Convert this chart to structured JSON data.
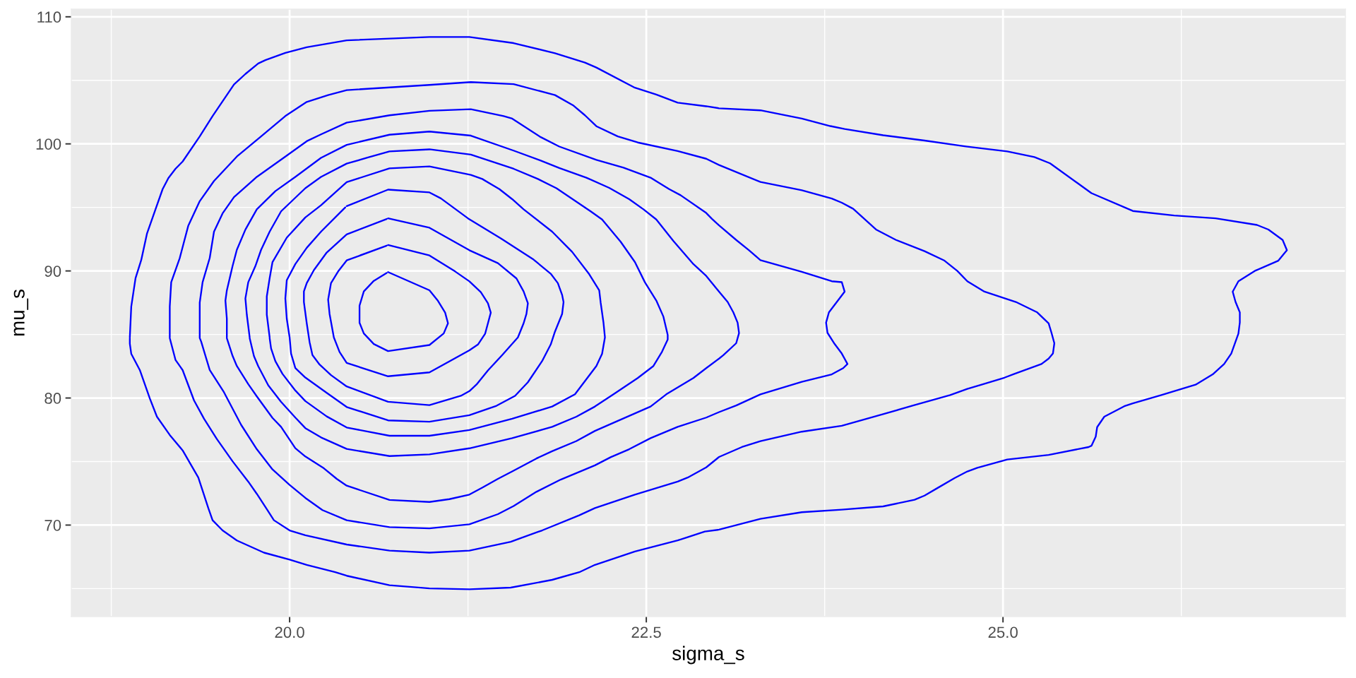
{
  "chart_data": {
    "type": "line",
    "xlabel": "sigma_s",
    "ylabel": "mu_s",
    "xlim": [
      18.47,
      27.4
    ],
    "ylim": [
      62.8,
      110.6
    ],
    "xticks": [
      {
        "value": 20,
        "label": "20.0"
      },
      22.5,
      {
        "value": 25,
        "label": "25.0"
      }
    ],
    "yticks": [
      70,
      80,
      90,
      100,
      110
    ],
    "grid": true,
    "line_style": "solid",
    "series": [
      {
        "color": "#0000ff",
        "x": [
          20.69,
          20.98,
          21.04,
          21.09,
          21.11,
          21.08,
          20.98,
          20.69,
          20.59,
          20.52,
          20.49,
          20.49,
          20.52,
          20.59,
          20.68
        ],
        "values": [
          89.91,
          88.48,
          87.64,
          86.72,
          85.88,
          85.08,
          84.17,
          83.69,
          84.25,
          85.08,
          85.92,
          87.27,
          88.39,
          89.22,
          89.84
        ]
      },
      {
        "color": "#0000ff",
        "x": [
          20.69,
          20.98,
          21.16,
          21.26,
          21.34,
          21.39,
          21.41,
          21.39,
          21.37,
          21.32,
          21.26,
          20.98,
          20.69,
          20.4,
          20.35,
          20.31,
          20.28,
          20.27,
          20.29,
          20.34,
          20.4,
          20.68
        ],
        "values": [
          92.04,
          91.22,
          89.96,
          89.18,
          88.33,
          87.46,
          86.72,
          85.88,
          85.05,
          84.21,
          83.75,
          82.02,
          81.71,
          82.76,
          83.62,
          84.77,
          86.62,
          87.74,
          89.04,
          89.96,
          90.83,
          91.99
        ]
      },
      {
        "color": "#0000ff",
        "x": [
          20.69,
          20.98,
          21.26,
          21.46,
          21.59,
          21.64,
          21.67,
          21.66,
          21.64,
          21.6,
          21.49,
          21.39,
          21.31,
          21.26,
          21.2,
          20.98,
          20.69,
          20.4,
          20.29,
          20.21,
          20.16,
          20.14,
          20.12,
          20.1,
          20.1,
          20.12,
          20.17,
          20.26,
          20.4,
          20.68
        ],
        "values": [
          94.14,
          93.4,
          91.63,
          90.61,
          89.41,
          88.39,
          87.46,
          86.62,
          85.88,
          84.77,
          83.38,
          82.17,
          81.06,
          80.54,
          80.17,
          79.44,
          79.7,
          80.91,
          81.8,
          82.63,
          83.38,
          84.4,
          85.88,
          87.55,
          88.39,
          89.04,
          90.06,
          91.45,
          92.88,
          94.09
        ]
      },
      {
        "color": "#0000ff",
        "x": [
          20.4,
          20.69,
          20.98,
          21.06,
          21.25,
          21.48,
          21.71,
          21.83,
          21.88,
          21.91,
          21.92,
          21.91,
          21.86,
          21.83,
          21.77,
          21.67,
          21.58,
          21.45,
          21.26,
          20.98,
          20.69,
          20.4,
          20.26,
          20.11,
          20.04,
          20.01,
          20.0,
          19.98,
          19.97,
          19.98,
          20.04,
          20.12,
          20.22,
          20.39
        ],
        "values": [
          95.1,
          96.4,
          96.18,
          95.71,
          94.14,
          92.56,
          90.89,
          89.78,
          89.04,
          88.11,
          87.55,
          86.62,
          85.23,
          84.21,
          82.91,
          81.24,
          80.17,
          79.39,
          78.65,
          78.13,
          78.24,
          79.29,
          80.41,
          81.61,
          82.36,
          83.5,
          84.77,
          86.24,
          87.83,
          89.27,
          90.54,
          91.82,
          93.09,
          95.0
        ]
      },
      {
        "color": "#0000ff",
        "x": [
          19.86,
          19.84,
          19.84,
          19.86,
          19.88,
          19.98,
          20.11,
          20.22,
          20.4,
          20.7,
          20.98,
          21.27,
          21.35,
          21.47,
          21.56,
          21.64,
          21.84,
          21.98,
          22.1,
          22.17,
          22.18,
          22.2,
          22.21,
          22.19,
          22.15,
          22.0,
          21.84,
          21.56,
          21.26,
          20.98,
          20.7,
          20.4,
          20.26,
          20.11,
          20.04,
          19.95,
          19.9,
          19.87,
          19.86
        ],
        "values": [
          84.77,
          86.56,
          87.99,
          89.43,
          90.7,
          92.62,
          94.21,
          95.17,
          96.99,
          98.07,
          98.23,
          97.56,
          97.24,
          96.44,
          95.65,
          94.85,
          93.09,
          91.5,
          89.74,
          88.47,
          87.51,
          85.92,
          84.77,
          83.48,
          82.52,
          80.29,
          79.33,
          78.37,
          77.48,
          77.03,
          77.03,
          77.68,
          78.55,
          79.76,
          80.59,
          81.9,
          82.9,
          83.9,
          84.71
        ]
      },
      {
        "color": "#0000ff",
        "x": [
          19.72,
          19.7,
          19.69,
          19.71,
          19.76,
          19.8,
          19.86,
          19.94,
          20.11,
          20.22,
          20.4,
          20.55,
          20.7,
          20.98,
          21.27,
          21.57,
          21.74,
          21.87,
          22.11,
          22.19,
          22.32,
          22.42,
          22.49,
          22.57,
          22.62,
          22.65,
          22.65,
          22.61,
          22.55,
          22.44,
          22.27,
          22.14,
          22.01,
          21.84,
          21.56,
          21.26,
          20.98,
          20.7,
          20.4,
          20.22,
          20.11,
          20.04,
          19.94,
          19.85,
          19.78,
          19.75,
          19.72
        ],
        "values": [
          84.77,
          86.56,
          87.83,
          89.11,
          90.38,
          91.66,
          93.09,
          94.69,
          96.51,
          97.4,
          98.45,
          98.93,
          99.41,
          99.57,
          99.16,
          98.04,
          97.24,
          96.51,
          94.69,
          94.05,
          92.3,
          90.7,
          89.11,
          87.67,
          86.4,
          84.96,
          84.6,
          83.64,
          82.52,
          81.57,
          80.29,
          79.33,
          78.53,
          77.73,
          76.84,
          76.04,
          75.56,
          75.43,
          75.99,
          76.9,
          77.63,
          78.46,
          79.7,
          81.0,
          82.5,
          83.3,
          84.71
        ]
      },
      {
        "color": "#0000ff",
        "x": [
          19.56,
          19.56,
          19.55,
          19.56,
          19.6,
          19.63,
          19.69,
          19.77,
          19.9,
          20.04,
          20.22,
          20.4,
          20.7,
          20.98,
          21.27,
          21.57,
          21.76,
          21.89,
          22.08,
          22.24,
          22.38,
          22.48,
          22.57,
          22.69,
          22.83,
          22.92,
          23.01,
          23.07,
          23.11,
          23.14,
          23.15,
          23.13,
          23.04,
          23.01,
          22.92,
          22.83,
          22.64,
          22.53,
          22.27,
          22.14,
          22.01,
          21.84,
          21.73,
          21.56,
          21.46,
          21.35,
          21.26,
          21.12,
          20.98,
          20.7,
          20.4,
          20.33,
          20.24,
          20.11,
          20.04,
          19.94,
          19.88,
          19.77,
          19.71,
          19.63,
          19.6,
          19.56
        ],
        "values": [
          84.77,
          86.24,
          87.67,
          88.47,
          90.38,
          91.66,
          93.25,
          94.85,
          96.28,
          97.4,
          98.9,
          99.92,
          100.72,
          100.97,
          100.65,
          99.47,
          98.68,
          98.1,
          97.34,
          96.54,
          95.65,
          94.85,
          94.05,
          92.36,
          90.54,
          89.61,
          88.37,
          87.56,
          86.74,
          85.93,
          85.11,
          84.31,
          83.37,
          83.1,
          82.35,
          81.57,
          80.29,
          79.33,
          78.05,
          77.41,
          76.61,
          75.81,
          75.24,
          74.22,
          73.64,
          72.94,
          72.4,
          72.04,
          71.82,
          71.98,
          73.1,
          73.64,
          74.47,
          75.4,
          76.05,
          77.73,
          78.43,
          80.13,
          81.09,
          82.52,
          83.32,
          84.71
        ]
      },
      {
        "color": "#0000ff",
        "x": [
          19.37,
          19.37,
          19.39,
          19.44,
          19.47,
          19.53,
          19.61,
          19.77,
          19.97,
          20.12,
          20.22,
          20.4,
          20.7,
          20.98,
          21.27,
          21.5,
          21.56,
          21.76,
          21.89,
          22.15,
          22.34,
          22.53,
          22.66,
          22.74,
          22.92,
          22.96,
          23.01,
          23.13,
          23.22,
          23.3,
          23.59,
          23.8,
          23.87,
          23.89,
          23.78,
          23.76,
          23.77,
          23.82,
          23.87,
          23.91,
          23.88,
          23.8,
          23.59,
          23.3,
          23.13,
          23.01,
          22.92,
          22.72,
          22.53,
          22.38,
          22.25,
          22.14,
          21.9,
          21.73,
          21.57,
          21.46,
          21.26,
          20.98,
          20.7,
          20.4,
          20.23,
          20.11,
          20.0,
          19.88,
          19.77,
          19.66,
          19.54,
          19.44,
          19.38,
          19.37
        ],
        "values": [
          84.77,
          87.51,
          89.11,
          91.02,
          93.09,
          94.53,
          95.81,
          97.4,
          99.0,
          100.21,
          100.75,
          101.67,
          102.25,
          102.6,
          102.73,
          102.19,
          101.99,
          100.53,
          99.79,
          98.74,
          98.13,
          97.34,
          96.44,
          95.96,
          94.56,
          94.1,
          93.58,
          92.44,
          91.63,
          90.85,
          89.93,
          89.19,
          89.12,
          88.37,
          86.74,
          85.93,
          85.13,
          84.25,
          83.5,
          82.68,
          82.35,
          81.86,
          81.27,
          80.29,
          79.41,
          78.89,
          78.46,
          77.73,
          76.84,
          75.97,
          75.34,
          74.7,
          73.58,
          72.62,
          71.5,
          70.86,
          70.06,
          69.74,
          69.84,
          70.38,
          71.18,
          72.14,
          73.16,
          74.38,
          75.97,
          77.89,
          80.45,
          82.2,
          84.44,
          84.72
        ]
      },
      {
        "color": "#0000ff",
        "x": [
          19.16,
          19.16,
          19.17,
          19.23,
          19.26,
          19.29,
          19.37,
          19.47,
          19.63,
          19.8,
          19.97,
          20.12,
          20.27,
          20.4,
          20.98,
          21.27,
          21.57,
          21.86,
          21.99,
          22.07,
          22.15,
          22.3,
          22.44,
          22.72,
          22.92,
          23.01,
          23.3,
          23.59,
          23.8,
          23.87,
          23.95,
          24.11,
          24.25,
          24.45,
          24.59,
          24.68,
          24.75,
          24.87,
          25.09,
          25.24,
          25.32,
          25.34,
          25.36,
          25.35,
          25.32,
          25.27,
          25.08,
          25.01,
          24.85,
          24.75,
          24.63,
          24.37,
          24.16,
          23.87,
          23.59,
          23.3,
          23.17,
          23.01,
          22.92,
          22.79,
          22.72,
          22.42,
          22.14,
          22.03,
          21.77,
          21.55,
          21.26,
          20.98,
          20.7,
          20.4,
          20.11,
          20.0,
          19.89,
          19.84,
          19.77,
          19.71,
          19.6,
          19.49,
          19.4,
          19.33,
          19.25,
          19.2,
          19.16
        ],
        "values": [
          84.77,
          87.19,
          89.11,
          91.02,
          92.3,
          93.57,
          95.49,
          97.08,
          99.0,
          100.59,
          102.19,
          103.3,
          103.84,
          104.23,
          104.64,
          104.86,
          104.7,
          103.84,
          103.01,
          102.25,
          101.39,
          100.59,
          100.11,
          99.44,
          98.83,
          98.34,
          97.0,
          96.35,
          95.7,
          95.37,
          94.89,
          93.26,
          92.44,
          91.56,
          90.81,
          90.0,
          89.19,
          88.37,
          87.56,
          86.74,
          85.87,
          85.13,
          84.31,
          83.5,
          83.1,
          82.68,
          81.9,
          81.6,
          81.05,
          80.72,
          80.23,
          79.41,
          78.73,
          77.81,
          77.35,
          76.6,
          76.14,
          75.36,
          74.54,
          73.74,
          73.42,
          72.4,
          71.34,
          70.77,
          69.58,
          68.69,
          67.99,
          67.83,
          67.99,
          68.47,
          69.2,
          69.58,
          70.38,
          71.25,
          72.46,
          73.42,
          75.02,
          76.77,
          78.37,
          79.81,
          82.2,
          83.0,
          84.71
        ]
      },
      {
        "color": "#0000ff",
        "x": [
          18.88,
          18.89,
          18.92,
          18.96,
          19.0,
          19.06,
          19.11,
          19.15,
          19.2,
          19.25,
          19.37,
          19.46,
          19.61,
          19.69,
          19.78,
          19.83,
          19.97,
          20.12,
          20.4,
          20.98,
          21.26,
          21.57,
          21.86,
          22.07,
          22.15,
          22.42,
          22.57,
          22.72,
          22.92,
          23.01,
          23.3,
          23.59,
          23.79,
          23.89,
          24.16,
          24.45,
          24.74,
          25.03,
          25.22,
          25.33,
          25.62,
          25.91,
          26.2,
          26.49,
          26.78,
          26.86,
          26.96,
          26.99,
          26.93,
          26.77,
          26.65,
          26.61,
          26.63,
          26.66,
          26.66,
          26.65,
          26.6,
          26.55,
          26.47,
          26.35,
          26.11,
          25.91,
          25.85,
          25.71,
          25.66,
          25.65,
          25.62,
          25.6,
          25.32,
          25.03,
          24.82,
          24.75,
          24.66,
          24.54,
          24.45,
          24.38,
          24.16,
          23.87,
          23.59,
          23.3,
          23.01,
          22.91,
          22.72,
          22.42,
          22.14,
          22.03,
          21.84,
          21.55,
          21.26,
          20.98,
          20.7,
          20.4,
          20.32,
          20.12,
          20.0,
          19.82,
          19.63,
          19.53,
          19.46,
          19.43,
          19.39,
          19.36,
          19.25,
          19.16,
          19.07,
          19.02,
          18.95,
          18.89,
          18.88,
          18.88
        ],
        "values": [
          84.77,
          87.19,
          89.43,
          90.86,
          92.93,
          94.85,
          96.44,
          97.3,
          98.04,
          98.61,
          100.59,
          102.19,
          104.67,
          105.5,
          106.33,
          106.59,
          107.16,
          107.61,
          108.15,
          108.41,
          108.41,
          107.93,
          107.13,
          106.4,
          106.01,
          104.42,
          103.88,
          103.24,
          102.96,
          102.8,
          102.64,
          101.99,
          101.4,
          101.17,
          100.68,
          100.26,
          99.8,
          99.41,
          98.96,
          98.47,
          96.12,
          94.72,
          94.36,
          94.14,
          93.62,
          93.26,
          92.44,
          91.63,
          90.81,
          90.03,
          89.19,
          88.37,
          87.56,
          86.74,
          85.94,
          85.07,
          83.5,
          82.68,
          81.86,
          81.05,
          80.23,
          79.58,
          79.35,
          78.53,
          77.71,
          76.96,
          76.24,
          76.14,
          75.52,
          75.16,
          74.51,
          74.22,
          73.69,
          72.91,
          72.32,
          71.99,
          71.47,
          71.21,
          71.01,
          70.49,
          69.64,
          69.49,
          68.79,
          67.92,
          66.87,
          66.29,
          65.69,
          65.08,
          64.95,
          65.02,
          65.27,
          66.01,
          66.29,
          66.87,
          67.28,
          67.83,
          68.79,
          69.58,
          70.38,
          71.34,
          72.72,
          73.74,
          75.88,
          77.09,
          78.53,
          79.97,
          82.2,
          83.48,
          84.28,
          84.72
        ]
      }
    ]
  }
}
